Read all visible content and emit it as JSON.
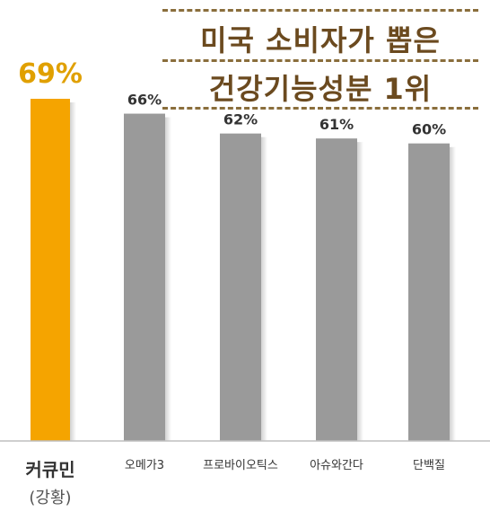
{
  "title_lines": [
    "미국 소비자가 뽑은",
    "건강기능성분 1위"
  ],
  "colors": {
    "highlight": "#f5a400",
    "bar": "#9a9a9a",
    "highlight_label": "#e0a000",
    "label": "#333333",
    "title": "#6b4a1f",
    "dash": "#8a6e3c"
  },
  "chart_data": {
    "type": "bar",
    "title": "미국 소비자가 뽑은 건강기능성분 1위",
    "categories": [
      "커큐민",
      "오메가3",
      "프로바이오틱스",
      "아슈와간다",
      "단백질"
    ],
    "category_notes": [
      "(강황)",
      "",
      "",
      "",
      ""
    ],
    "values": [
      69,
      66,
      62,
      61,
      60
    ],
    "value_labels": [
      "69%",
      "66%",
      "62%",
      "61%",
      "60%"
    ],
    "highlight_index": 0,
    "ylim": [
      0,
      69
    ],
    "grid": false,
    "legend": "none"
  }
}
